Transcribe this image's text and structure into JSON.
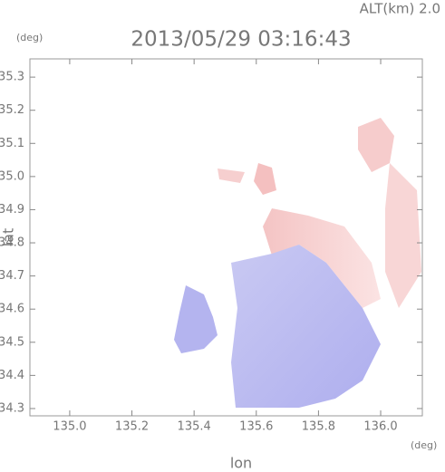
{
  "chart_data": {
    "type": "map",
    "title": "2013/05/29 03:16:43",
    "subtitle": "ALT(km) 2.0",
    "xlabel": "lon",
    "ylabel": "lat",
    "xunit": "(deg)",
    "yunit": "(deg)",
    "xlim": [
      134.872,
      136.134
    ],
    "ylim": [
      34.278,
      35.355
    ],
    "xticks": [
      {
        "value": 135.0,
        "label": "135.0"
      },
      135.2,
      135.4,
      135.6,
      135.8,
      {
        "value": 136.0,
        "label": "136.0"
      }
    ],
    "yticks": [
      34.3,
      34.4,
      34.5,
      34.6,
      34.7,
      34.8,
      34.9,
      {
        "value": 35.0,
        "label": "35.0"
      },
      35.1,
      35.2,
      35.3
    ]
  }
}
